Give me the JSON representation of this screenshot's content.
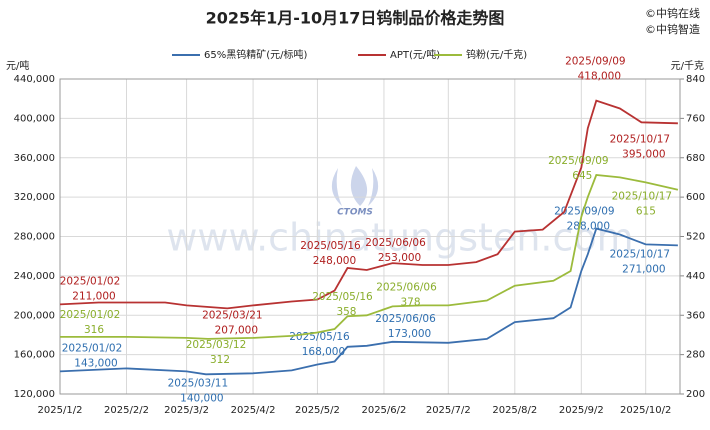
{
  "chart_data": {
    "type": "line",
    "title": "2025年1月-10月17日钨制品价格走势图",
    "credits": [
      "©中钨在线",
      "©中钨智造"
    ],
    "watermark": "www.chinatungsten.com",
    "logo_text": "CTOMS",
    "y_label": "元/吨",
    "y2_label": "元/千克",
    "grid": true,
    "xlim": [
      "2025/1/2",
      "2025/10/18"
    ],
    "xticks": [
      "2025/1/2",
      "2025/2/2",
      "2025/3/2",
      "2025/4/2",
      "2025/5/2",
      "2025/6/2",
      "2025/7/2",
      "2025/8/2",
      "2025/9/2",
      "2025/10/2"
    ],
    "ylim": [
      120000,
      440000
    ],
    "yticks": [
      {
        "value": 120000,
        "label": "120,000"
      },
      {
        "value": 160000,
        "label": "160,000"
      },
      {
        "value": 200000,
        "label": "200,000"
      },
      {
        "value": 240000,
        "label": "240,000"
      },
      {
        "value": 280000,
        "label": "280,000"
      },
      {
        "value": 320000,
        "label": "320,000"
      },
      {
        "value": 360000,
        "label": "360,000"
      },
      {
        "value": 400000,
        "label": "400,000"
      },
      {
        "value": 440000,
        "label": "440,000"
      }
    ],
    "y2lim": [
      200,
      840
    ],
    "y2ticks": [
      200,
      280,
      360,
      440,
      520,
      600,
      680,
      760,
      840
    ],
    "series": [
      {
        "name": "65%黑钨精矿(元/标吨)",
        "color": "#3b6fae",
        "label_color": "#2f6fb0",
        "x": [
          "2025/1/2",
          "2025/2/2",
          "2025/3/2",
          "2025/3/11",
          "2025/4/2",
          "2025/4/20",
          "2025/5/2",
          "2025/5/10",
          "2025/5/16",
          "2025/5/25",
          "2025/6/6",
          "2025/7/2",
          "2025/7/20",
          "2025/8/2",
          "2025/8/20",
          "2025/8/28",
          "2025/9/2",
          "2025/9/5",
          "2025/9/9",
          "2025/9/20",
          "2025/10/2",
          "2025/10/17"
        ],
        "values": [
          143000,
          146000,
          143000,
          140000,
          141000,
          144000,
          150000,
          153000,
          168000,
          169000,
          173000,
          172000,
          176000,
          193000,
          197000,
          208000,
          245000,
          262000,
          288000,
          282000,
          272000,
          271000
        ],
        "annotations": [
          {
            "date": "2025/01/02",
            "value": 143000,
            "value_label": "143,000"
          },
          {
            "date": "2025/03/11",
            "value": 140000,
            "value_label": "140,000"
          },
          {
            "date": "2025/05/16",
            "value": 168000,
            "value_label": "168,000"
          },
          {
            "date": "2025/06/06",
            "value": 173000,
            "value_label": "173,000"
          },
          {
            "date": "2025/09/09",
            "value": 288000,
            "value_label": "288,000"
          },
          {
            "date": "2025/10/17",
            "value": 271000,
            "value_label": "271,000"
          }
        ]
      },
      {
        "name": "APT(元/吨)",
        "color": "#b83232",
        "label_color": "#b02020",
        "x": [
          "2025/1/2",
          "2025/1/20",
          "2025/2/20",
          "2025/3/2",
          "2025/3/21",
          "2025/4/2",
          "2025/4/20",
          "2025/5/2",
          "2025/5/10",
          "2025/5/16",
          "2025/5/25",
          "2025/6/6",
          "2025/6/20",
          "2025/7/2",
          "2025/7/15",
          "2025/7/25",
          "2025/8/2",
          "2025/8/15",
          "2025/8/25",
          "2025/9/2",
          "2025/9/5",
          "2025/9/9",
          "2025/9/20",
          "2025/9/30",
          "2025/10/17"
        ],
        "values": [
          211000,
          213000,
          213000,
          210000,
          207000,
          210000,
          214000,
          216000,
          225000,
          248000,
          246000,
          253000,
          251000,
          251000,
          254000,
          262000,
          285000,
          287000,
          305000,
          350000,
          390000,
          418000,
          410000,
          396000,
          395000
        ],
        "annotations": [
          {
            "date": "2025/01/02",
            "value": 211000,
            "value_label": "211,000"
          },
          {
            "date": "2025/03/21",
            "value": 207000,
            "value_label": "207,000"
          },
          {
            "date": "2025/05/16",
            "value": 248000,
            "value_label": "248,000"
          },
          {
            "date": "2025/06/06",
            "value": 253000,
            "value_label": "253,000"
          },
          {
            "date": "2025/09/09",
            "value": 418000,
            "value_label": "418,000"
          },
          {
            "date": "2025/10/17",
            "value": 395000,
            "value_label": "395,000"
          }
        ]
      },
      {
        "name": "钨粉(元/千克)",
        "color": "#9cbb3c",
        "label_color": "#8aae2c",
        "axis": "y2",
        "x": [
          "2025/1/2",
          "2025/2/2",
          "2025/3/2",
          "2025/3/12",
          "2025/4/2",
          "2025/4/20",
          "2025/5/2",
          "2025/5/10",
          "2025/5/16",
          "2025/5/25",
          "2025/6/6",
          "2025/6/20",
          "2025/7/2",
          "2025/7/20",
          "2025/8/2",
          "2025/8/20",
          "2025/8/28",
          "2025/9/2",
          "2025/9/5",
          "2025/9/9",
          "2025/9/20",
          "2025/10/2",
          "2025/10/17"
        ],
        "values": [
          316,
          316,
          314,
          312,
          314,
          318,
          325,
          332,
          358,
          360,
          378,
          380,
          380,
          390,
          420,
          430,
          450,
          560,
          600,
          645,
          640,
          630,
          615
        ],
        "annotations": [
          {
            "date": "2025/01/02",
            "value": 316,
            "value_label": "316"
          },
          {
            "date": "2025/03/12",
            "value": 312,
            "value_label": "312"
          },
          {
            "date": "2025/05/16",
            "value": 358,
            "value_label": "358"
          },
          {
            "date": "2025/06/06",
            "value": 378,
            "value_label": "378"
          },
          {
            "date": "2025/09/09",
            "value": 645,
            "value_label": "645"
          },
          {
            "date": "2025/10/17",
            "value": 615,
            "value_label": "615"
          }
        ]
      }
    ]
  }
}
